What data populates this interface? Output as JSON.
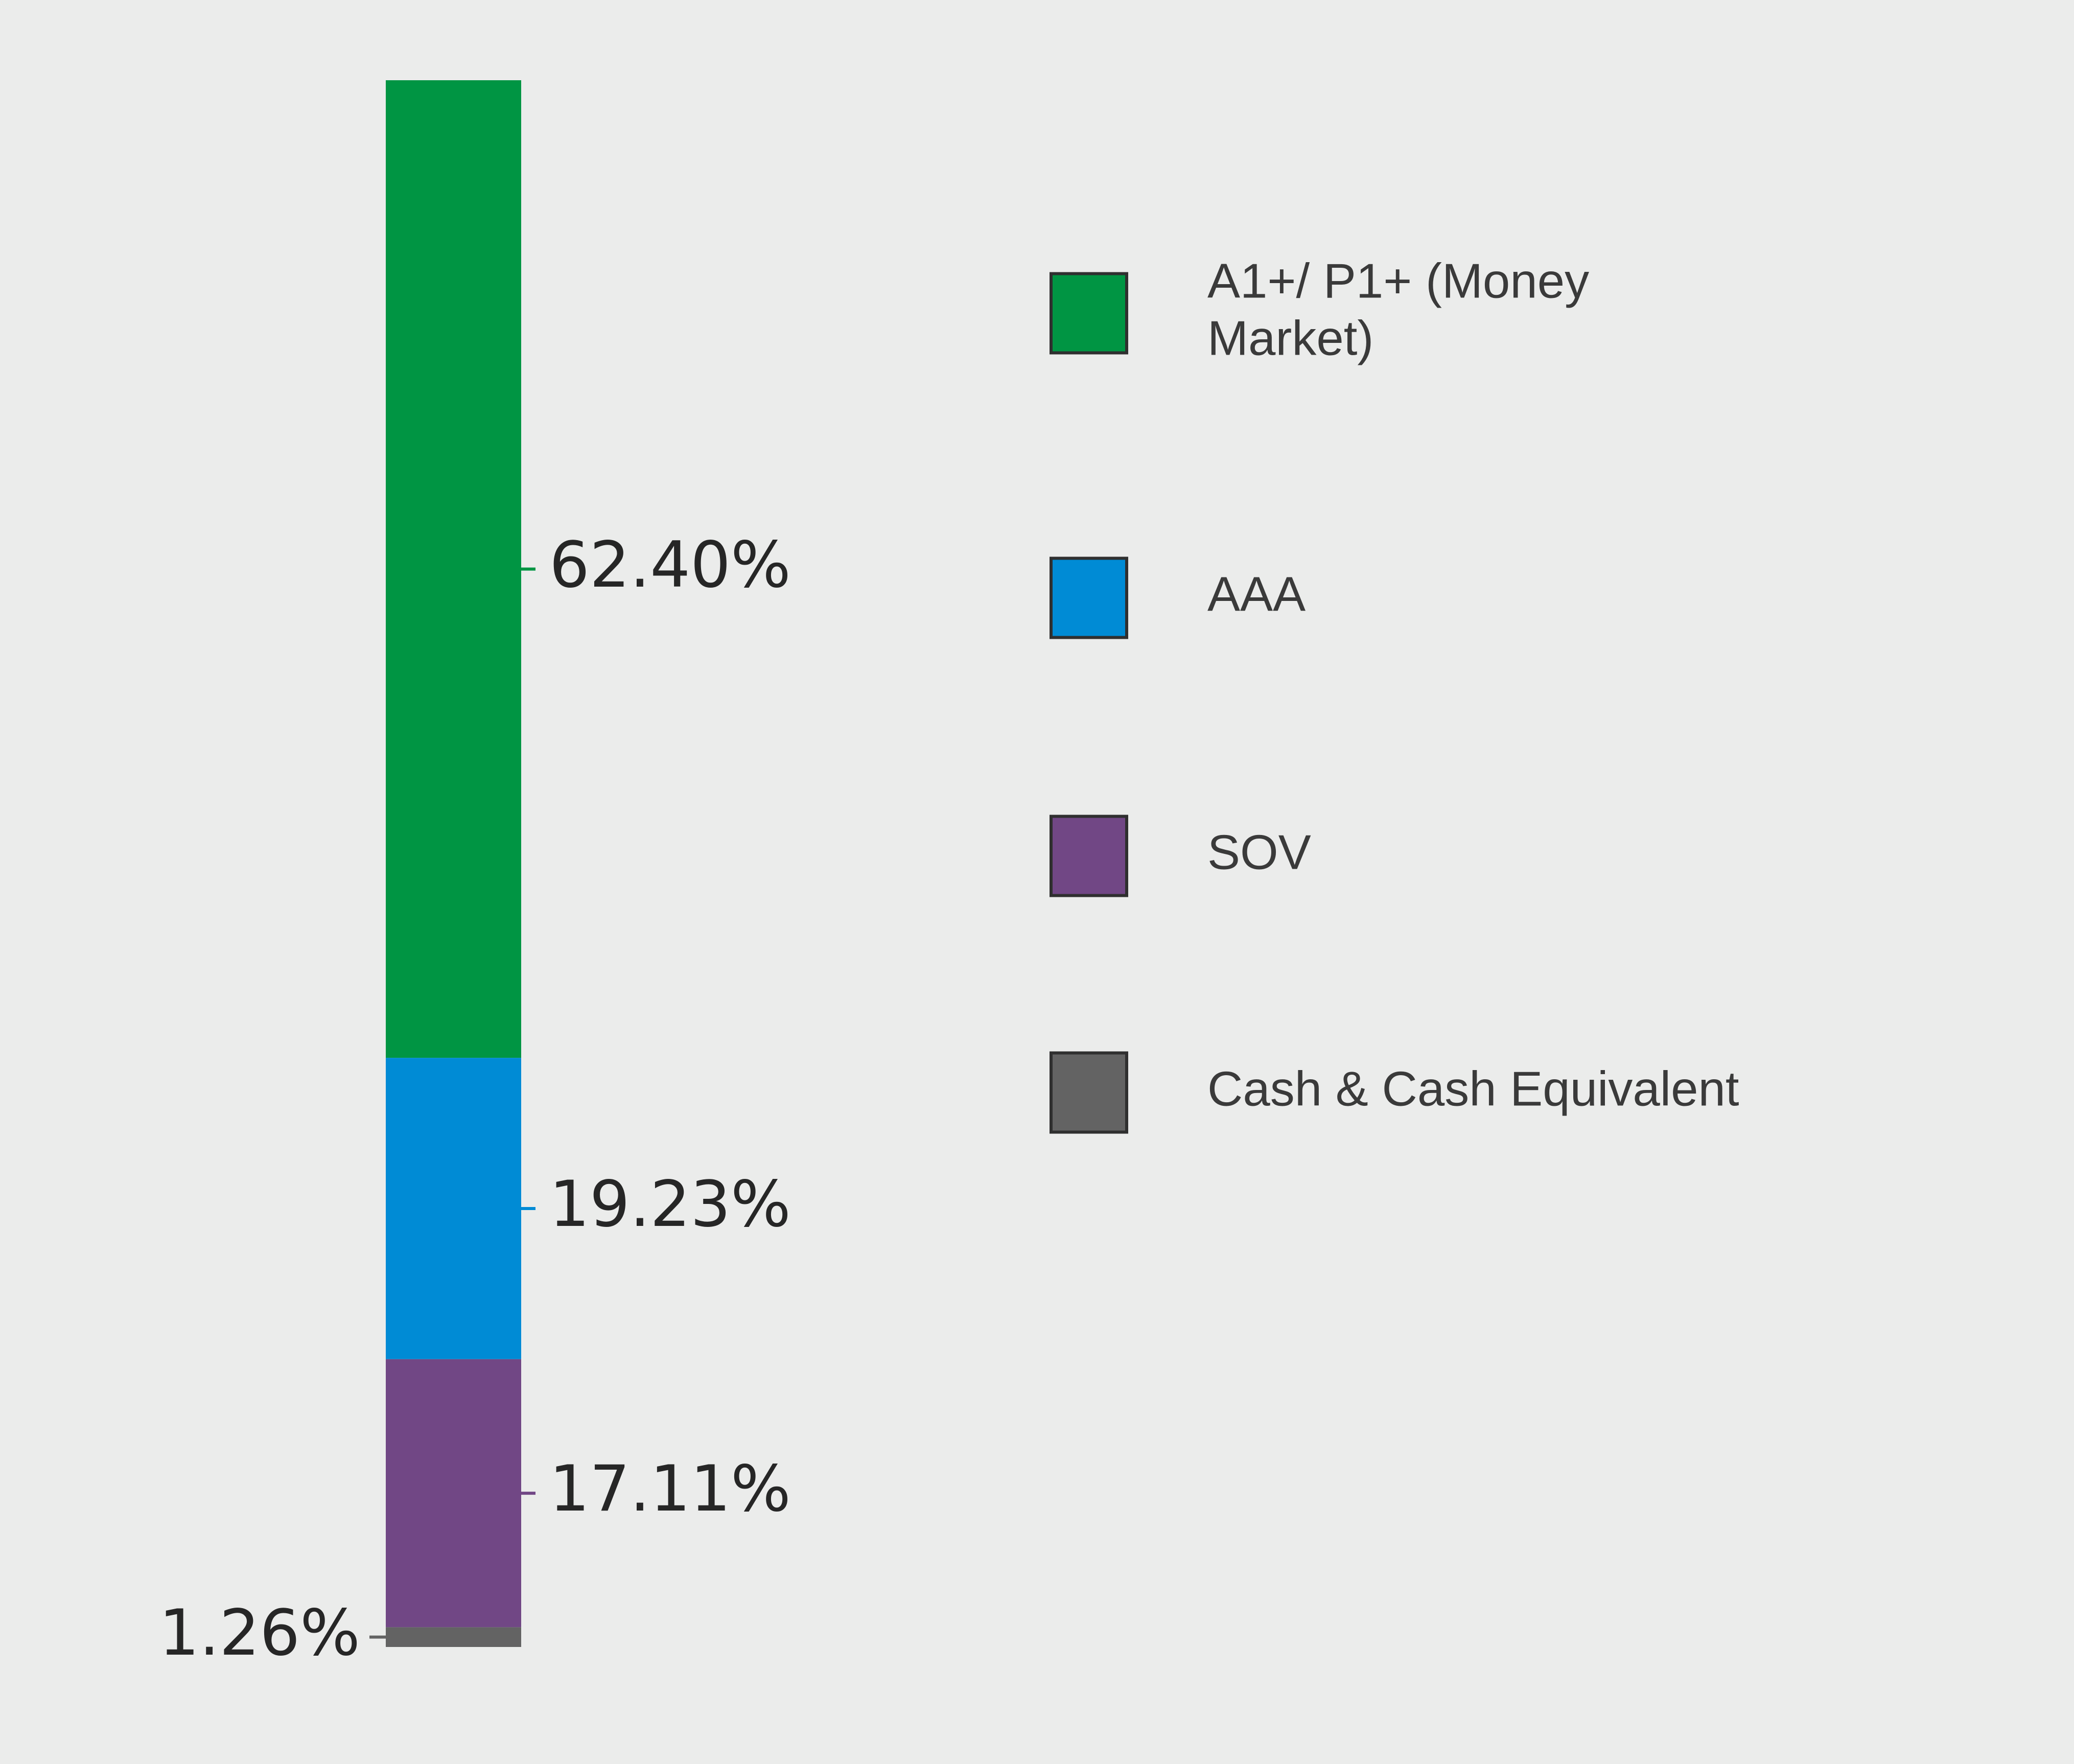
{
  "chart_data": {
    "type": "bar",
    "stacked": true,
    "orientation": "vertical",
    "categories": [
      ""
    ],
    "series": [
      {
        "name": "A1+/ P1+ (Money Market)",
        "values": [
          62.4
        ],
        "label": "62.40%",
        "color": "#009543"
      },
      {
        "name": "AAA",
        "values": [
          19.23
        ],
        "label": "19.23%",
        "color": "#008bd5"
      },
      {
        "name": "SOV",
        "values": [
          17.11
        ],
        "label": "17.11%",
        "color": "#714785"
      },
      {
        "name": "Cash & Cash Equivalent",
        "values": [
          1.26
        ],
        "label": "1.26%",
        "color": "#636363"
      }
    ],
    "legend": {
      "placement": "right",
      "entries": [
        {
          "lines": [
            "A1+/ P1+ (Money",
            "Market)"
          ]
        },
        {
          "lines": [
            "AAA"
          ]
        },
        {
          "lines": [
            "SOV"
          ]
        },
        {
          "lines": [
            "Cash & Cash Equivalent"
          ]
        }
      ]
    },
    "grid": false,
    "title": "",
    "xlabel": "",
    "ylabel": ""
  }
}
